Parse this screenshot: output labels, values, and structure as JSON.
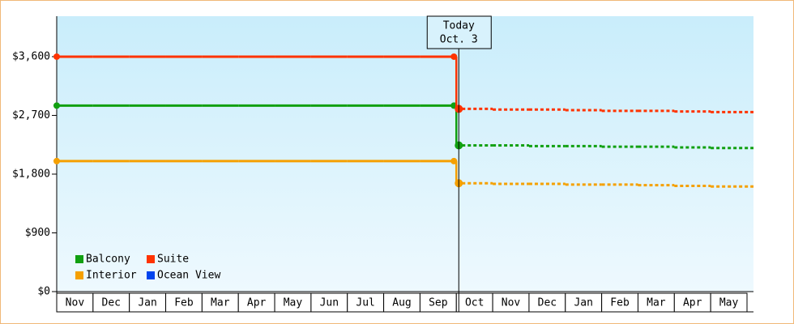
{
  "chart_data": {
    "type": "line",
    "annotation": {
      "label": "Today",
      "date": "Oct. 3"
    },
    "categories": [
      "Nov",
      "Dec",
      "Jan",
      "Feb",
      "Mar",
      "Apr",
      "May",
      "Jun",
      "Jul",
      "Aug",
      "Sep",
      "Oct",
      "Nov",
      "Dec",
      "Jan",
      "Feb",
      "Mar",
      "Apr",
      "May"
    ],
    "ylim": [
      0,
      4220
    ],
    "yticks": [
      {
        "value": 0,
        "label": "$0"
      },
      {
        "value": 900,
        "label": "$900"
      },
      {
        "value": 1800,
        "label": "$1,800"
      },
      {
        "value": 2700,
        "label": "$2,700"
      },
      {
        "value": 3600,
        "label": "$3,600"
      }
    ],
    "forecast_style": "dotted",
    "series": [
      {
        "name": "Balcony",
        "color": "#11a011",
        "values": [
          2850,
          2850,
          2850,
          2850,
          2850,
          2850,
          2850,
          2850,
          2850,
          2850,
          2850,
          null,
          null,
          null,
          null,
          null,
          null,
          null,
          null
        ],
        "forecast": [
          null,
          null,
          null,
          null,
          null,
          null,
          null,
          null,
          null,
          null,
          null,
          2240,
          2240,
          2230,
          2230,
          2220,
          2220,
          2210,
          2200
        ]
      },
      {
        "name": "Suite",
        "color": "#ff3300",
        "values": [
          3600,
          3600,
          3600,
          3600,
          3600,
          3600,
          3600,
          3600,
          3600,
          3600,
          3600,
          null,
          null,
          null,
          null,
          null,
          null,
          null,
          null
        ],
        "forecast": [
          null,
          null,
          null,
          null,
          null,
          null,
          null,
          null,
          null,
          null,
          null,
          2800,
          2790,
          2790,
          2780,
          2770,
          2770,
          2760,
          2750
        ]
      },
      {
        "name": "Interior",
        "color": "#f5a000",
        "values": [
          2000,
          2000,
          2000,
          2000,
          2000,
          2000,
          2000,
          2000,
          2000,
          2000,
          2000,
          null,
          null,
          null,
          null,
          null,
          null,
          null,
          null
        ],
        "forecast": [
          null,
          null,
          null,
          null,
          null,
          null,
          null,
          null,
          null,
          null,
          null,
          1660,
          1650,
          1650,
          1640,
          1640,
          1630,
          1620,
          1610
        ]
      },
      {
        "name": "Ocean View",
        "color": "#0044ee",
        "values": [
          null,
          null,
          null,
          null,
          null,
          null,
          null,
          null,
          null,
          null,
          null,
          null,
          null,
          null,
          null,
          null,
          null,
          null,
          null
        ],
        "forecast": [
          null,
          null,
          null,
          null,
          null,
          null,
          null,
          null,
          null,
          null,
          null,
          null,
          null,
          null,
          null,
          null,
          null,
          null,
          null
        ]
      }
    ]
  }
}
